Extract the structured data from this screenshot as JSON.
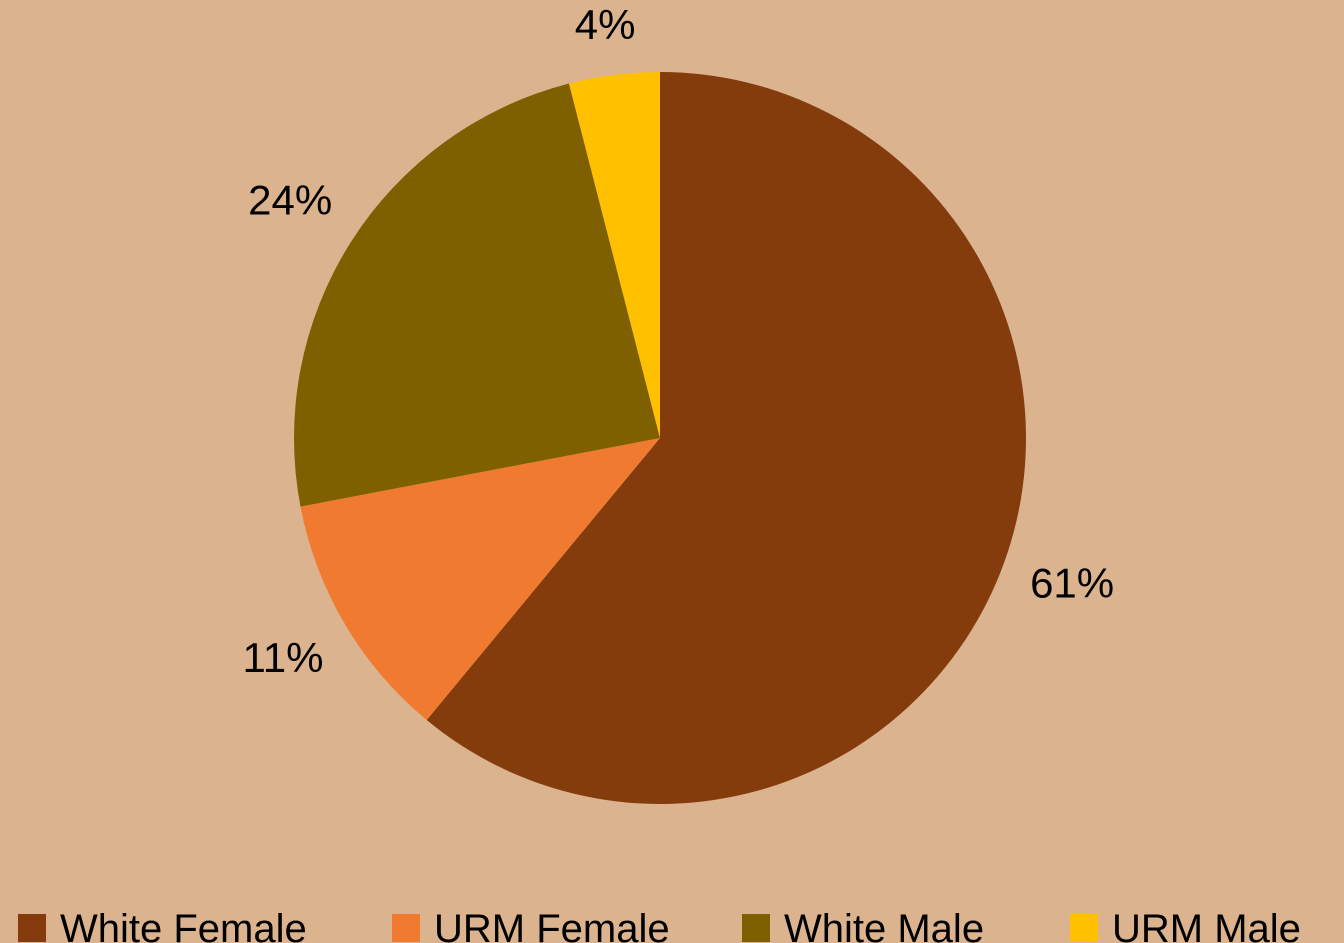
{
  "chart_data": {
    "type": "pie",
    "categories": [
      "White Female",
      "URM Female",
      "White Male",
      "URM Male"
    ],
    "values": [
      61,
      11,
      24,
      4
    ],
    "value_labels": [
      "61%",
      "11%",
      "24%",
      "4%"
    ],
    "colors": [
      "#843c0c",
      "#f07a30",
      "#7f6000",
      "#ffc000"
    ],
    "legend": "bottom"
  }
}
